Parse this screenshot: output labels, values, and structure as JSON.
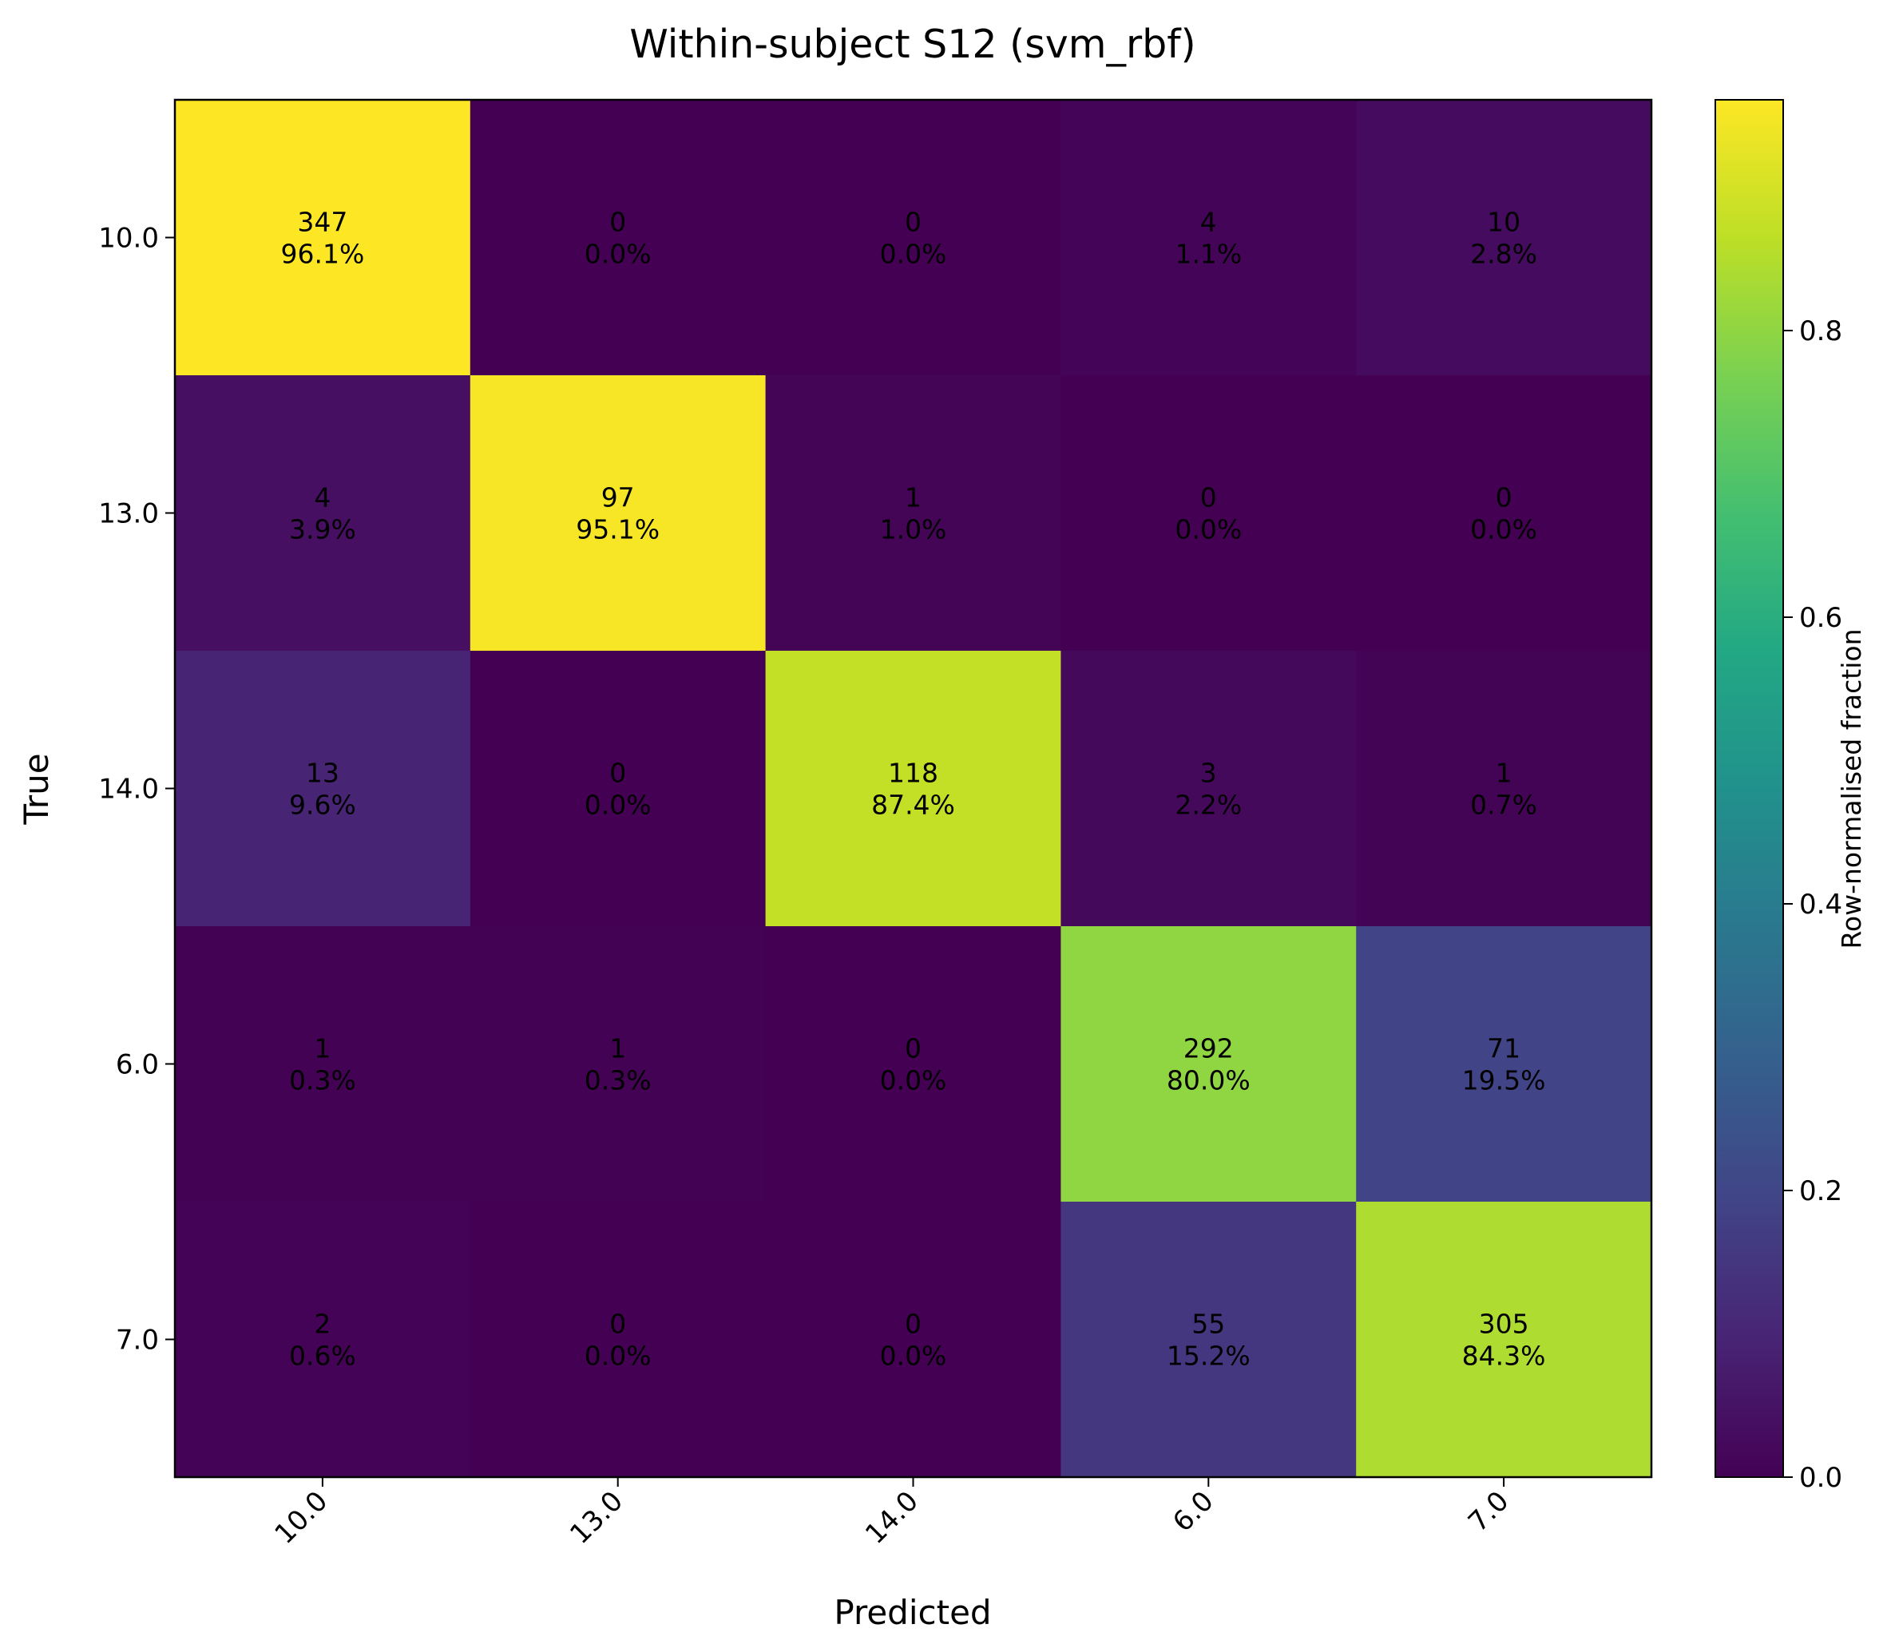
{
  "chart_data": {
    "type": "heatmap",
    "title": "Within-subject S12 (svm_rbf)",
    "xlabel": "Predicted",
    "ylabel": "True",
    "x_categories": [
      "10.0",
      "13.0",
      "14.0",
      "6.0",
      "7.0"
    ],
    "y_categories": [
      "10.0",
      "13.0",
      "14.0",
      "6.0",
      "7.0"
    ],
    "counts": [
      [
        347,
        0,
        0,
        4,
        10
      ],
      [
        4,
        97,
        1,
        0,
        0
      ],
      [
        13,
        0,
        118,
        3,
        1
      ],
      [
        1,
        1,
        0,
        292,
        71
      ],
      [
        2,
        0,
        0,
        55,
        305
      ]
    ],
    "percent_labels": [
      [
        "96.1%",
        "0.0%",
        "0.0%",
        "1.1%",
        "2.8%"
      ],
      [
        "3.9%",
        "95.1%",
        "1.0%",
        "0.0%",
        "0.0%"
      ],
      [
        "9.6%",
        "0.0%",
        "87.4%",
        "2.2%",
        "0.7%"
      ],
      [
        "0.3%",
        "0.3%",
        "0.0%",
        "80.0%",
        "19.5%"
      ],
      [
        "0.6%",
        "0.0%",
        "0.0%",
        "15.2%",
        "84.3%"
      ]
    ],
    "fractions": [
      [
        0.961,
        0.0,
        0.0,
        0.011,
        0.028
      ],
      [
        0.039,
        0.951,
        0.01,
        0.0,
        0.0
      ],
      [
        0.096,
        0.0,
        0.874,
        0.022,
        0.007
      ],
      [
        0.003,
        0.003,
        0.0,
        0.8,
        0.195
      ],
      [
        0.006,
        0.0,
        0.0,
        0.152,
        0.843
      ]
    ],
    "colormap": "viridis",
    "colorbar": {
      "label": "Row-normalised fraction",
      "range": [
        0,
        0.961
      ],
      "ticks": [
        0.0,
        0.2,
        0.4,
        0.6,
        0.8
      ],
      "tick_labels": [
        "0.0",
        "0.2",
        "0.4",
        "0.6",
        "0.8"
      ]
    },
    "grid": false
  }
}
